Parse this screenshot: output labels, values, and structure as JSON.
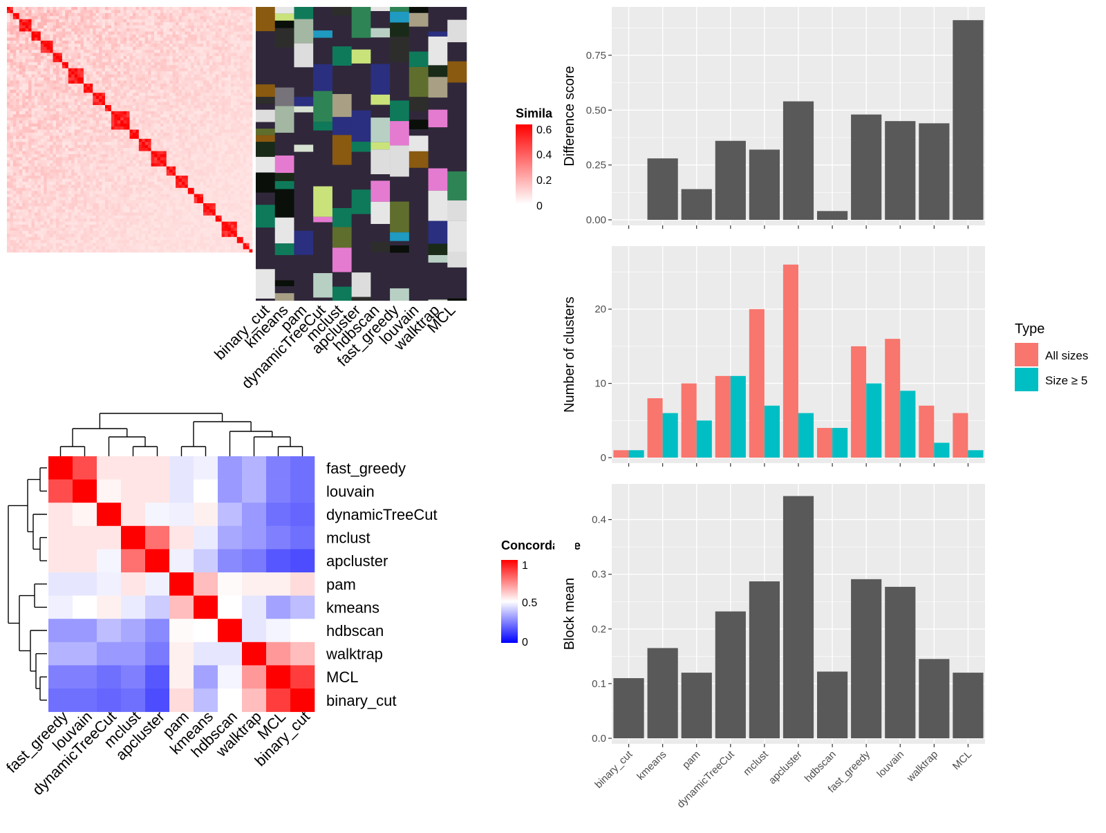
{
  "methods_row_order": [
    "binary_cut",
    "kmeans",
    "pam",
    "dynamicTreeCut",
    "mclust",
    "apcluster",
    "hdbscan",
    "fast_greedy",
    "louvain",
    "walktrap",
    "MCL"
  ],
  "similarity_legend": {
    "title": "Similarity",
    "ticks": [
      "0.6",
      "0.4",
      "0.2",
      "0"
    ]
  },
  "concordance_legend": {
    "title": "Concordance",
    "ticks": [
      "1",
      "0.5",
      "0"
    ]
  },
  "type_legend": {
    "title": "Type",
    "items": [
      "All sizes",
      "Size ≥ 5"
    ]
  },
  "colors": {
    "all_sizes": "#F8766D",
    "size5": "#00BFC4",
    "bar": "#595959",
    "panel_bg": "#EBEBEB",
    "grid": "#FFFFFF",
    "heat_high": "#FF0000",
    "concord_low": "#0000FF"
  },
  "chart_data": [
    {
      "type": "bar",
      "ylabel": "Difference score",
      "categories": [
        "binary_cut",
        "kmeans",
        "pam",
        "dynamicTreeCut",
        "mclust",
        "apcluster",
        "hdbscan",
        "fast_greedy",
        "louvain",
        "walktrap",
        "MCL"
      ],
      "values": [
        0,
        0.28,
        0.14,
        0.36,
        0.32,
        0.54,
        0.04,
        0.48,
        0.45,
        0.44,
        0.91
      ],
      "ylim": [
        0,
        0.92
      ],
      "yticks": [
        "0.00",
        "0.25",
        "0.50",
        "0.75"
      ]
    },
    {
      "type": "bar",
      "ylabel": "Number of clusters",
      "categories": [
        "binary_cut",
        "kmeans",
        "pam",
        "dynamicTreeCut",
        "mclust",
        "apcluster",
        "hdbscan",
        "fast_greedy",
        "louvain",
        "walktrap",
        "MCL"
      ],
      "series": [
        {
          "name": "All sizes",
          "values": [
            1,
            8,
            10,
            11,
            20,
            26,
            4,
            15,
            16,
            7,
            6
          ]
        },
        {
          "name": "Size ≥ 5",
          "values": [
            1,
            6,
            5,
            11,
            7,
            6,
            4,
            10,
            9,
            2,
            1
          ]
        }
      ],
      "ylim": [
        0,
        27
      ],
      "yticks": [
        "0",
        "10",
        "20"
      ]
    },
    {
      "type": "bar",
      "ylabel": "Block mean",
      "categories": [
        "binary_cut",
        "kmeans",
        "pam",
        "dynamicTreeCut",
        "mclust",
        "apcluster",
        "hdbscan",
        "fast_greedy",
        "louvain",
        "walktrap",
        "MCL"
      ],
      "values": [
        0.11,
        0.165,
        0.12,
        0.232,
        0.287,
        0.443,
        0.122,
        0.291,
        0.277,
        0.145,
        0.12
      ],
      "ylim": [
        0,
        0.445
      ],
      "yticks": [
        "0.0",
        "0.1",
        "0.2",
        "0.3",
        "0.4"
      ]
    },
    {
      "type": "heatmap",
      "rows": [
        "fast_greedy",
        "louvain",
        "dynamicTreeCut",
        "mclust",
        "apcluster",
        "pam",
        "kmeans",
        "hdbscan",
        "walktrap",
        "MCL",
        "binary_cut"
      ],
      "columns": [
        "fast_greedy",
        "louvain",
        "dynamicTreeCut",
        "mclust",
        "apcluster",
        "pam",
        "kmeans",
        "hdbscan",
        "walktrap",
        "MCL",
        "binary_cut"
      ],
      "values": [
        [
          1.0,
          0.85,
          0.55,
          0.55,
          0.55,
          0.45,
          0.47,
          0.3,
          0.35,
          0.25,
          0.22
        ],
        [
          0.85,
          1.0,
          0.52,
          0.55,
          0.55,
          0.45,
          0.5,
          0.3,
          0.35,
          0.25,
          0.22
        ],
        [
          0.55,
          0.52,
          1.0,
          0.55,
          0.48,
          0.47,
          0.53,
          0.37,
          0.3,
          0.22,
          0.2
        ],
        [
          0.55,
          0.55,
          0.55,
          1.0,
          0.78,
          0.55,
          0.46,
          0.33,
          0.3,
          0.25,
          0.22
        ],
        [
          0.55,
          0.55,
          0.48,
          0.78,
          1.0,
          0.47,
          0.4,
          0.27,
          0.24,
          0.17,
          0.15
        ],
        [
          0.45,
          0.45,
          0.47,
          0.55,
          0.47,
          1.0,
          0.63,
          0.51,
          0.53,
          0.53,
          0.57
        ],
        [
          0.47,
          0.5,
          0.53,
          0.46,
          0.4,
          0.63,
          1.0,
          0.5,
          0.45,
          0.32,
          0.37
        ],
        [
          0.3,
          0.3,
          0.37,
          0.33,
          0.27,
          0.51,
          0.5,
          1.0,
          0.45,
          0.48,
          0.5
        ],
        [
          0.35,
          0.35,
          0.3,
          0.3,
          0.24,
          0.53,
          0.45,
          0.45,
          1.0,
          0.7,
          0.63
        ],
        [
          0.25,
          0.25,
          0.22,
          0.25,
          0.17,
          0.53,
          0.32,
          0.48,
          0.7,
          1.0,
          0.88
        ],
        [
          0.22,
          0.22,
          0.2,
          0.22,
          0.15,
          0.57,
          0.37,
          0.5,
          0.63,
          0.88,
          1.0
        ]
      ]
    }
  ]
}
